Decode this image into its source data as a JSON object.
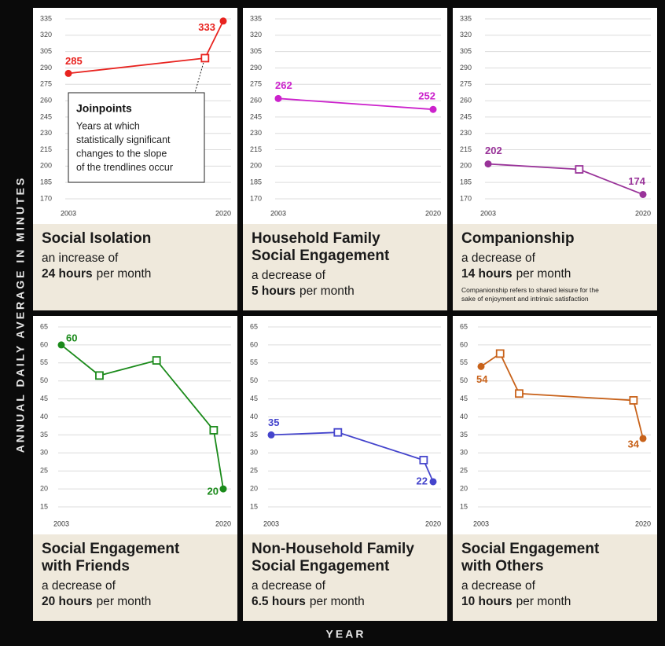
{
  "y_axis_label": "ANNUAL DAILY AVERAGE IN MINUTES",
  "x_axis_label": "YEAR",
  "chart_data": [
    {
      "type": "line",
      "title": [
        "Social Isolation"
      ],
      "change": "an increase of",
      "amount": "24 hours",
      "amount_suffix": "per month",
      "color": "#e8231f",
      "x": [
        2003,
        2018,
        2020
      ],
      "values": [
        285,
        299,
        333
      ],
      "value_labels": [
        "285",
        null,
        "333"
      ],
      "xlim": [
        2003,
        2020
      ],
      "xticks": [
        2003,
        2020
      ],
      "ylim": [
        170,
        335
      ],
      "yticks": [
        335,
        320,
        305,
        290,
        275,
        260,
        245,
        230,
        215,
        200,
        185,
        170
      ],
      "grid": true,
      "annotation": {
        "title": "Joinpoints",
        "lines": [
          "Years at which",
          "statistically significant",
          "changes to the slope",
          "of the trendlines occur"
        ]
      }
    },
    {
      "type": "line",
      "title": [
        "Household Family",
        "Social Engagement"
      ],
      "change": "a decrease of",
      "amount": "5 hours",
      "amount_suffix": "per month",
      "color": "#cc22cc",
      "x": [
        2003,
        2020
      ],
      "values": [
        262,
        252
      ],
      "value_labels": [
        "262",
        "252"
      ],
      "xlim": [
        2003,
        2020
      ],
      "xticks": [
        2003,
        2020
      ],
      "ylim": [
        170,
        335
      ],
      "yticks": [
        335,
        320,
        305,
        290,
        275,
        260,
        245,
        230,
        215,
        200,
        185,
        170
      ],
      "grid": true
    },
    {
      "type": "line",
      "title": [
        "Companionship"
      ],
      "change": "a decrease of",
      "amount": "14 hours",
      "amount_suffix": "per month",
      "note": [
        "Companionship refers to shared leisure for the",
        "sake of enjoyment and intrinsic satisfaction"
      ],
      "color": "#993399",
      "x": [
        2003,
        2013,
        2020
      ],
      "values": [
        202,
        197,
        174
      ],
      "value_labels": [
        "202",
        null,
        "174"
      ],
      "xlim": [
        2003,
        2020
      ],
      "xticks": [
        2003,
        2020
      ],
      "ylim": [
        170,
        335
      ],
      "yticks": [
        335,
        320,
        305,
        290,
        275,
        260,
        245,
        230,
        215,
        200,
        185,
        170
      ],
      "grid": true
    },
    {
      "type": "line",
      "title": [
        "Social Engagement",
        "with Friends"
      ],
      "change": "a decrease of",
      "amount": "20 hours",
      "amount_suffix": "per month",
      "color": "#1a8a1a",
      "x": [
        2003,
        2007,
        2013,
        2019,
        2020
      ],
      "values": [
        60,
        51.5,
        55.7,
        36.3,
        20
      ],
      "value_labels": [
        "60",
        null,
        null,
        null,
        "20"
      ],
      "xlim": [
        2003,
        2020
      ],
      "xticks": [
        2003,
        2020
      ],
      "ylim": [
        15,
        65
      ],
      "yticks": [
        65,
        60,
        55,
        50,
        45,
        40,
        35,
        30,
        25,
        20,
        15
      ],
      "grid": true
    },
    {
      "type": "line",
      "title": [
        "Non-Household Family",
        "Social Engagement"
      ],
      "change": "a decrease of",
      "amount": "6.5 hours",
      "amount_suffix": "per month",
      "color": "#4444cc",
      "x": [
        2003,
        2010,
        2019,
        2020
      ],
      "values": [
        35,
        35.7,
        28,
        22
      ],
      "value_labels": [
        "35",
        null,
        null,
        "22"
      ],
      "xlim": [
        2003,
        2020
      ],
      "xticks": [
        2003,
        2020
      ],
      "ylim": [
        15,
        65
      ],
      "yticks": [
        65,
        60,
        55,
        50,
        45,
        40,
        35,
        30,
        25,
        20,
        15
      ],
      "grid": true
    },
    {
      "type": "line",
      "title": [
        "Social Engagement",
        "with Others"
      ],
      "change": "a decrease of",
      "amount": "10 hours",
      "amount_suffix": "per month",
      "color": "#c8621a",
      "x": [
        2003,
        2005,
        2007,
        2019,
        2020
      ],
      "values": [
        54,
        57.6,
        46.5,
        44.6,
        34
      ],
      "value_labels": [
        "54",
        null,
        null,
        null,
        "34"
      ],
      "xlim": [
        2003,
        2020
      ],
      "xticks": [
        2003,
        2020
      ],
      "ylim": [
        15,
        65
      ],
      "yticks": [
        65,
        60,
        55,
        50,
        45,
        40,
        35,
        30,
        25,
        20,
        15
      ],
      "grid": true
    }
  ]
}
